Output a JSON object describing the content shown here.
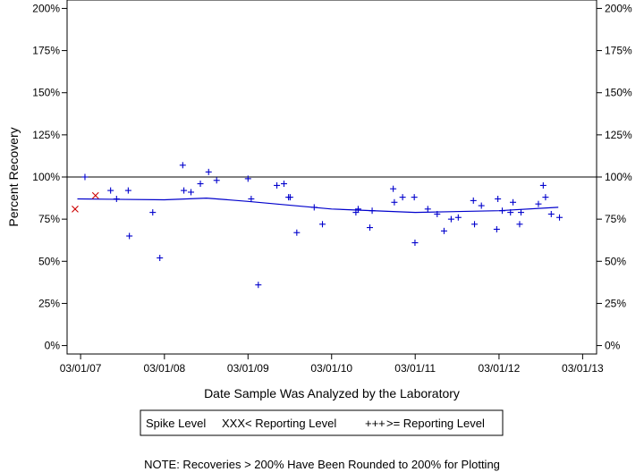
{
  "chart_data": {
    "type": "scatter",
    "title": "",
    "xlabel": "Date Sample Was Analyzed by the Laboratory",
    "ylabel": "Percent Recovery",
    "xlim": [
      "2007-01-01",
      "2013-05-01"
    ],
    "ylim": [
      -5,
      205
    ],
    "x_ticks": [
      "2007-03-01",
      "2008-03-01",
      "2009-03-01",
      "2010-03-01",
      "2011-03-01",
      "2012-03-01",
      "2013-03-01"
    ],
    "x_tick_labels": [
      "03/01/07",
      "03/01/08",
      "03/01/09",
      "03/01/10",
      "03/01/11",
      "03/01/12",
      "03/01/13"
    ],
    "y_ticks": [
      0,
      25,
      50,
      75,
      100,
      125,
      150,
      175,
      200
    ],
    "y_tick_labels": [
      "0%",
      "25%",
      "50%",
      "75%",
      "100%",
      "125%",
      "150%",
      "175%",
      "200%"
    ],
    "reference_line": 100,
    "grid": false,
    "legend_title": "Spike Level",
    "series": [
      {
        "name": "< Reporting Level",
        "marker": "x",
        "color": "#cc0000",
        "points": [
          {
            "x": "2007-02-05",
            "y": 81
          },
          {
            "x": "2007-05-05",
            "y": 89
          }
        ]
      },
      {
        "name": ">= Reporting Level",
        "marker": "+",
        "color": "#0000cc",
        "points": [
          {
            "x": "2007-03-20",
            "y": 100
          },
          {
            "x": "2007-07-10",
            "y": 92
          },
          {
            "x": "2007-08-05",
            "y": 87
          },
          {
            "x": "2007-09-25",
            "y": 92
          },
          {
            "x": "2007-09-30",
            "y": 65
          },
          {
            "x": "2008-01-10",
            "y": 79
          },
          {
            "x": "2008-02-10",
            "y": 52
          },
          {
            "x": "2008-05-20",
            "y": 107
          },
          {
            "x": "2008-05-25",
            "y": 92
          },
          {
            "x": "2008-06-25",
            "y": 91
          },
          {
            "x": "2008-08-05",
            "y": 96
          },
          {
            "x": "2008-09-10",
            "y": 103
          },
          {
            "x": "2008-10-15",
            "y": 98
          },
          {
            "x": "2009-03-01",
            "y": 99
          },
          {
            "x": "2009-03-15",
            "y": 87
          },
          {
            "x": "2009-04-15",
            "y": 36
          },
          {
            "x": "2009-07-05",
            "y": 95
          },
          {
            "x": "2009-08-05",
            "y": 96
          },
          {
            "x": "2009-08-25",
            "y": 88
          },
          {
            "x": "2009-09-01",
            "y": 88
          },
          {
            "x": "2009-09-30",
            "y": 67
          },
          {
            "x": "2009-12-15",
            "y": 82
          },
          {
            "x": "2010-01-20",
            "y": 72
          },
          {
            "x": "2010-06-15",
            "y": 79
          },
          {
            "x": "2010-06-25",
            "y": 81
          },
          {
            "x": "2010-08-15",
            "y": 70
          },
          {
            "x": "2010-08-25",
            "y": 80
          },
          {
            "x": "2010-11-30",
            "y": 85
          },
          {
            "x": "2010-11-25",
            "y": 93
          },
          {
            "x": "2011-01-05",
            "y": 88
          },
          {
            "x": "2011-02-25",
            "y": 88
          },
          {
            "x": "2011-02-28",
            "y": 61
          },
          {
            "x": "2011-04-25",
            "y": 81
          },
          {
            "x": "2011-06-05",
            "y": 78
          },
          {
            "x": "2011-07-05",
            "y": 68
          },
          {
            "x": "2011-08-05",
            "y": 75
          },
          {
            "x": "2011-09-05",
            "y": 76
          },
          {
            "x": "2011-11-10",
            "y": 86
          },
          {
            "x": "2011-11-15",
            "y": 72
          },
          {
            "x": "2011-12-15",
            "y": 83
          },
          {
            "x": "2012-02-25",
            "y": 87
          },
          {
            "x": "2012-02-20",
            "y": 69
          },
          {
            "x": "2012-03-15",
            "y": 80
          },
          {
            "x": "2012-04-20",
            "y": 79
          },
          {
            "x": "2012-05-01",
            "y": 85
          },
          {
            "x": "2012-05-30",
            "y": 72
          },
          {
            "x": "2012-06-05",
            "y": 79
          },
          {
            "x": "2012-08-20",
            "y": 84
          },
          {
            "x": "2012-09-10",
            "y": 95
          },
          {
            "x": "2012-09-20",
            "y": 88
          },
          {
            "x": "2012-10-15",
            "y": 78
          },
          {
            "x": "2012-11-20",
            "y": 76
          }
        ]
      }
    ],
    "trend_line": {
      "color": "#0000cc",
      "points": [
        {
          "x": "2007-02-15",
          "y": 87
        },
        {
          "x": "2008-03-01",
          "y": 86.5
        },
        {
          "x": "2008-09-01",
          "y": 87.5
        },
        {
          "x": "2009-03-01",
          "y": 85.5
        },
        {
          "x": "2010-03-01",
          "y": 81
        },
        {
          "x": "2011-03-01",
          "y": 79
        },
        {
          "x": "2012-03-01",
          "y": 80
        },
        {
          "x": "2012-11-15",
          "y": 82
        }
      ]
    }
  },
  "legend": {
    "title": "Spike Level",
    "items": [
      {
        "label": "< Reporting Level",
        "marker_text": "XXX",
        "color": "#cc0000"
      },
      {
        "label": ">= Reporting Level",
        "marker_text": "+++",
        "color": "#0000cc"
      }
    ]
  },
  "note": "NOTE: Recoveries > 200% Have Been Rounded to 200% for Plotting"
}
